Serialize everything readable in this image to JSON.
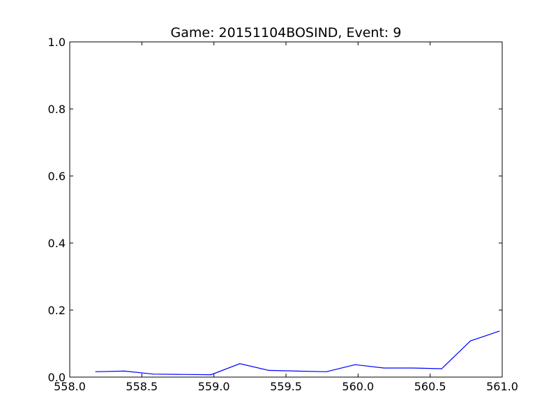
{
  "chart_data": {
    "type": "line",
    "title": "Game: 20151104BOSIND, Event: 9",
    "xlabel": "",
    "ylabel": "",
    "xlim": [
      558.0,
      561.0
    ],
    "ylim": [
      0.0,
      1.0
    ],
    "grid": false,
    "x_ticks": [
      "558.0",
      "558.5",
      "559.0",
      "559.5",
      "560.0",
      "560.5",
      "561.0"
    ],
    "y_ticks": [
      "0.0",
      "0.2",
      "0.4",
      "0.6",
      "0.8",
      "1.0"
    ],
    "series": [
      {
        "color": "#0000ff",
        "x": [
          558.18,
          558.38,
          558.58,
          558.78,
          558.98,
          559.18,
          559.38,
          559.58,
          559.78,
          559.98,
          560.18,
          560.38,
          560.58,
          560.78,
          560.98
        ],
        "y": [
          0.016,
          0.018,
          0.009,
          0.008,
          0.007,
          0.04,
          0.02,
          0.018,
          0.016,
          0.037,
          0.027,
          0.027,
          0.025,
          0.108,
          0.137
        ]
      }
    ]
  }
}
